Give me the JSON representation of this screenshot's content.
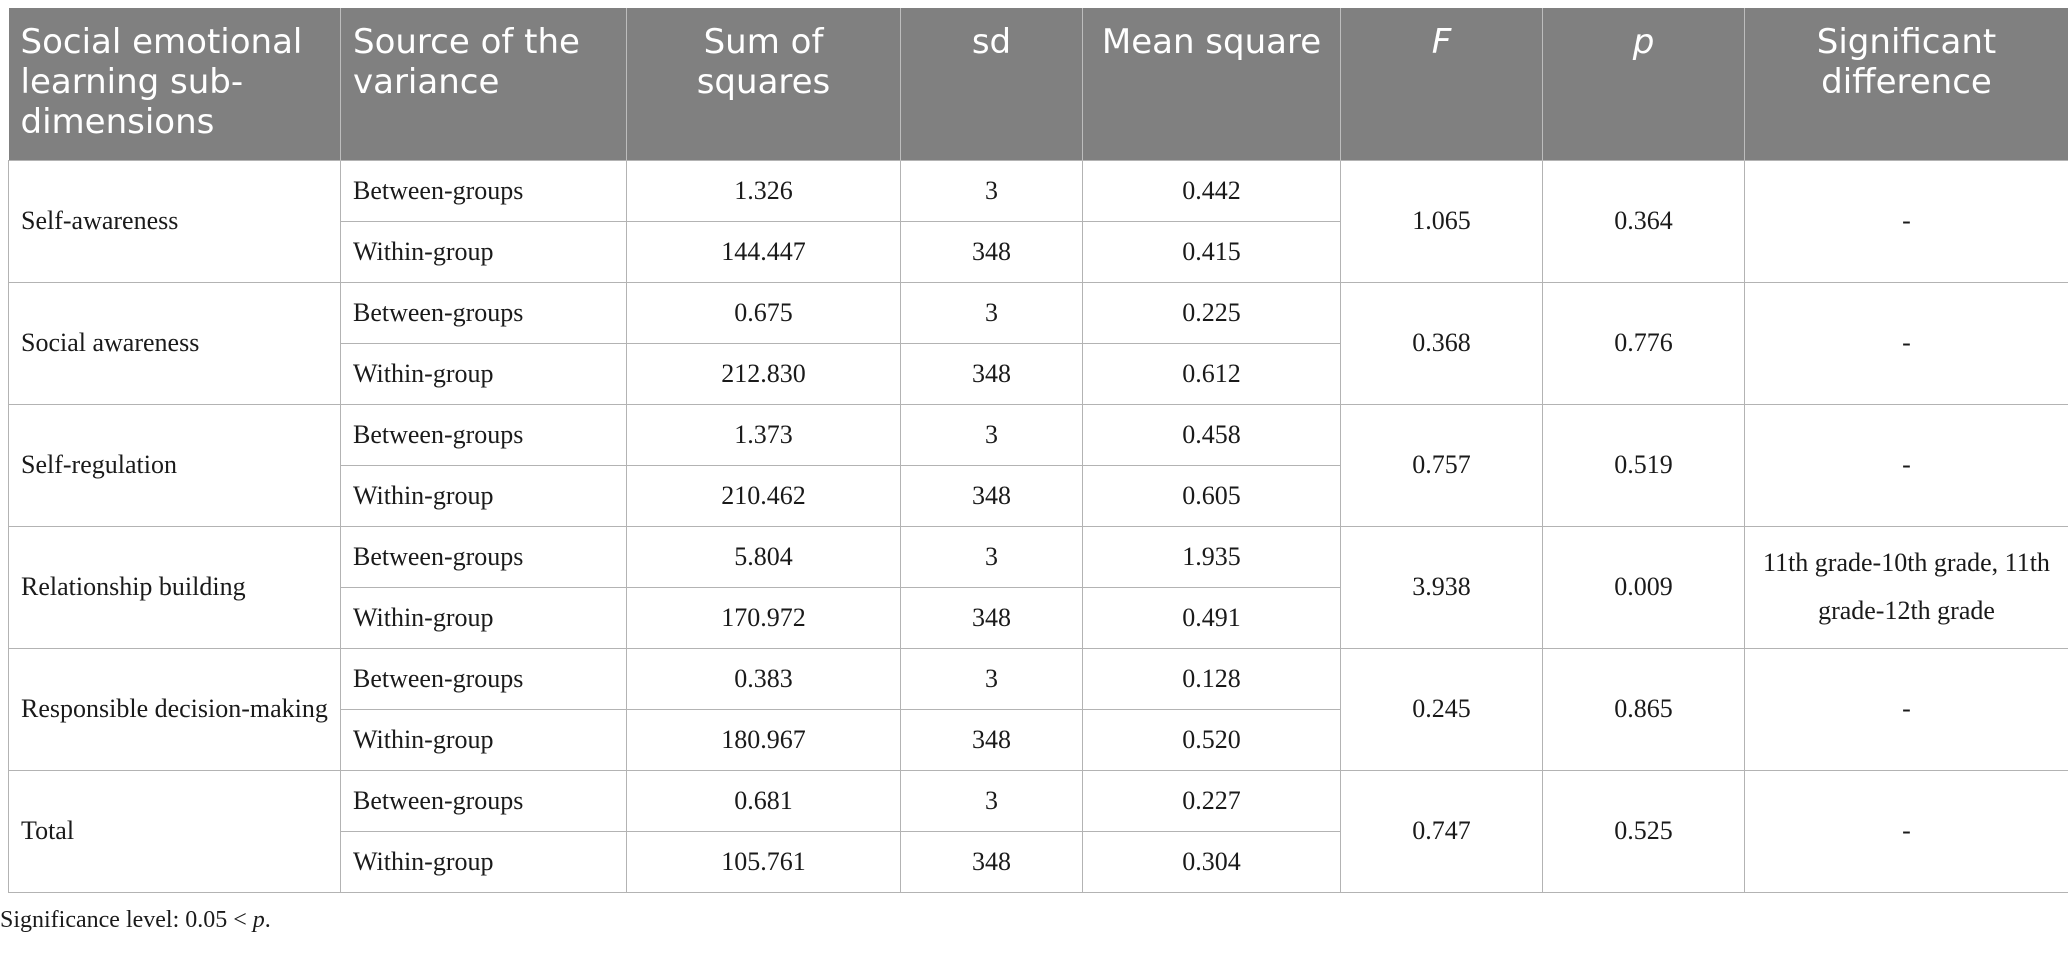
{
  "headers": {
    "dimension": "Social emotional learning sub-dimensions",
    "source": "Source of the variance",
    "sum_of_squares": "Sum of squares",
    "sd": "sd",
    "mean_square": "Mean square",
    "f": "F",
    "p": "p",
    "significant_difference": "Significant difference"
  },
  "rows": [
    {
      "dimension": "Self-awareness",
      "between": {
        "source": "Between-groups",
        "sum_of_squares": "1.326",
        "sd": "3",
        "mean_square": "0.442"
      },
      "within": {
        "source": "Within-group",
        "sum_of_squares": "144.447",
        "sd": "348",
        "mean_square": "0.415"
      },
      "f": "1.065",
      "p": "0.364",
      "significant_difference": "-"
    },
    {
      "dimension": "Social awareness",
      "between": {
        "source": "Between-groups",
        "sum_of_squares": "0.675",
        "sd": "3",
        "mean_square": "0.225"
      },
      "within": {
        "source": "Within-group",
        "sum_of_squares": "212.830",
        "sd": "348",
        "mean_square": "0.612"
      },
      "f": "0.368",
      "p": "0.776",
      "significant_difference": "-"
    },
    {
      "dimension": "Self-regulation",
      "between": {
        "source": "Between-groups",
        "sum_of_squares": "1.373",
        "sd": "3",
        "mean_square": "0.458"
      },
      "within": {
        "source": "Within-group",
        "sum_of_squares": "210.462",
        "sd": "348",
        "mean_square": "0.605"
      },
      "f": "0.757",
      "p": "0.519",
      "significant_difference": "-"
    },
    {
      "dimension": "Relationship building",
      "between": {
        "source": "Between-groups",
        "sum_of_squares": "5.804",
        "sd": "3",
        "mean_square": "1.935"
      },
      "within": {
        "source": "Within-group",
        "sum_of_squares": "170.972",
        "sd": "348",
        "mean_square": "0.491"
      },
      "f": "3.938",
      "p": "0.009",
      "significant_difference": "11th grade-10th grade, 11th grade-12th grade"
    },
    {
      "dimension": "Responsible decision-making",
      "between": {
        "source": "Between-groups",
        "sum_of_squares": "0.383",
        "sd": "3",
        "mean_square": "0.128"
      },
      "within": {
        "source": "Within-group",
        "sum_of_squares": "180.967",
        "sd": "348",
        "mean_square": "0.520"
      },
      "f": "0.245",
      "p": "0.865",
      "significant_difference": "-"
    },
    {
      "dimension": "Total",
      "between": {
        "source": "Between-groups",
        "sum_of_squares": "0.681",
        "sd": "3",
        "mean_square": "0.227"
      },
      "within": {
        "source": "Within-group",
        "sum_of_squares": "105.761",
        "sd": "348",
        "mean_square": "0.304"
      },
      "f": "0.747",
      "p": "0.525",
      "significant_difference": "-"
    }
  ],
  "footnote": {
    "prefix": "Significance level: 0.05 < ",
    "variable": "p",
    "suffix": "."
  },
  "colors": {
    "header_background": "#808080",
    "header_text": "#ffffff",
    "grid_line": "#b3b3b3"
  }
}
